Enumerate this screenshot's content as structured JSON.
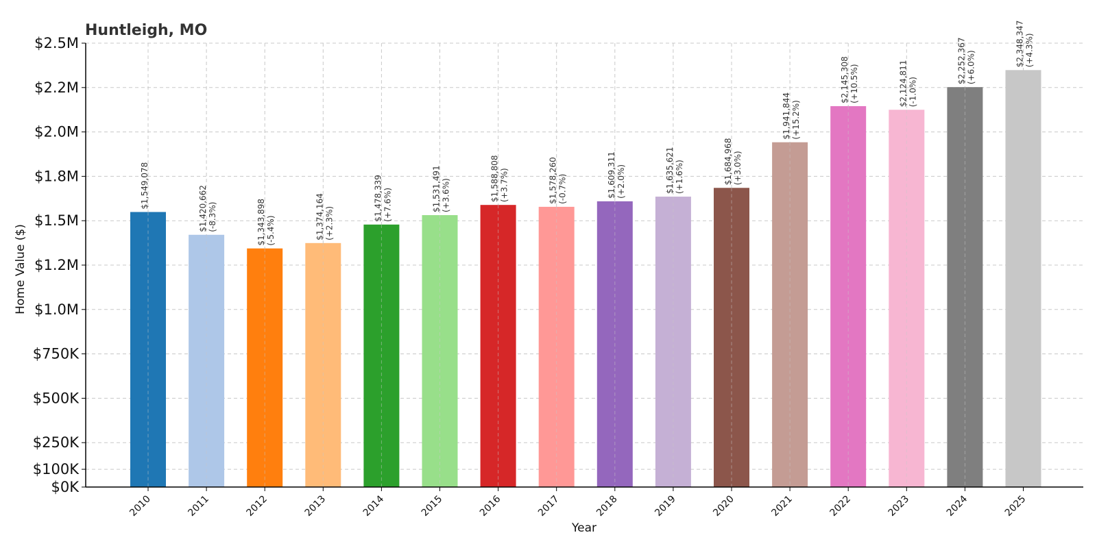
{
  "chart_data": {
    "type": "bar",
    "title": "Huntleigh, MO",
    "xlabel": "Year",
    "ylabel": "Home Value ($)",
    "ylim": [
      0,
      2500000
    ],
    "grid": true,
    "categories": [
      "2010",
      "2011",
      "2012",
      "2013",
      "2014",
      "2015",
      "2016",
      "2017",
      "2018",
      "2019",
      "2020",
      "2021",
      "2022",
      "2023",
      "2024",
      "2025"
    ],
    "values": [
      1549078,
      1420662,
      1343898,
      1374164,
      1478339,
      1531491,
      1588808,
      1578260,
      1609311,
      1635621,
      1684968,
      1941844,
      2145308,
      2124811,
      2252367,
      2348347
    ],
    "value_labels": [
      "$1,549,078",
      "$1,420,662",
      "$1,343,898",
      "$1,374,164",
      "$1,478,339",
      "$1,531,491",
      "$1,588,808",
      "$1,578,260",
      "$1,609,311",
      "$1,635,621",
      "$1,684,968",
      "$1,941,844",
      "$2,145,308",
      "$2,124,811",
      "$2,252,367",
      "$2,348,347"
    ],
    "change_labels": [
      "",
      "(-8.3%)",
      "(-5.4%)",
      "(+2.3%)",
      "(+7.6%)",
      "(+3.6%)",
      "(+3.7%)",
      "(-0.7%)",
      "(+2.0%)",
      "(+1.6%)",
      "(+3.0%)",
      "(+15.2%)",
      "(+10.5%)",
      "(-1.0%)",
      "(+6.0%)",
      "(+4.3%)"
    ],
    "colors": [
      "#1f77b4",
      "#aec7e8",
      "#ff7f0e",
      "#ffbb78",
      "#2ca02c",
      "#98df8a",
      "#d62728",
      "#ff9896",
      "#9467bd",
      "#c5b0d5",
      "#8c564b",
      "#c49c94",
      "#e377c2",
      "#f7b6d2",
      "#7f7f7f",
      "#c7c7c7"
    ],
    "yticks": [
      0,
      100000,
      250000,
      500000,
      750000,
      1000000,
      1250000,
      1500000,
      1750000,
      2000000,
      2250000,
      2500000
    ],
    "ytick_labels": [
      "$0K",
      "$100K",
      "$250K",
      "$500K",
      "$750K",
      "$1.0M",
      "$1.2M",
      "$1.5M",
      "$1.8M",
      "$2.0M",
      "$2.2M",
      "$2.5M"
    ]
  }
}
